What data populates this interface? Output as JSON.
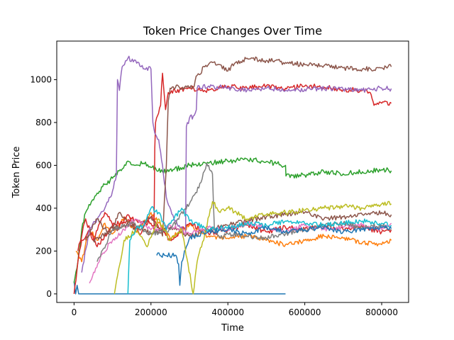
{
  "chart_data": {
    "type": "line",
    "title": "Token Price Changes Over Time",
    "xlabel": "Time",
    "ylabel": "Token Price",
    "xlim": [
      -45000,
      870000
    ],
    "ylim": [
      -40,
      1180
    ],
    "xticks": [
      0,
      200000,
      400000,
      600000,
      800000
    ],
    "xtick_labels": [
      "0",
      "200000",
      "400000",
      "600000",
      "800000"
    ],
    "yticks": [
      0,
      200,
      400,
      600,
      800,
      1000
    ],
    "ytick_labels": [
      "0",
      "200",
      "400",
      "600",
      "800",
      "1000"
    ],
    "grid": false,
    "legend": "none",
    "series": [
      {
        "color": "#1f77b4",
        "x": [
          0,
          4000,
          8000,
          12000,
          550000
        ],
        "y": [
          60,
          0,
          40,
          0,
          0
        ]
      },
      {
        "color": "#1f77b4",
        "x": [
          215000,
          255000,
          265000,
          272000,
          275000,
          280000,
          287000,
          295000,
          300000
        ],
        "y": [
          180,
          180,
          180,
          140,
          40,
          150,
          200,
          230,
          260
        ]
      },
      {
        "color": "#ff7f0e",
        "x": [
          5000,
          20000,
          40000,
          60000,
          80000,
          100000,
          130000,
          160000,
          200000,
          250000,
          300000,
          350000,
          400000,
          450000,
          500000,
          550000,
          600000,
          650000,
          700000,
          750000,
          800000,
          825000
        ],
        "y": [
          200,
          150,
          300,
          250,
          330,
          280,
          360,
          290,
          380,
          260,
          320,
          270,
          260,
          270,
          250,
          230,
          250,
          270,
          260,
          240,
          230,
          250
        ]
      },
      {
        "color": "#2ca02c",
        "x": [
          0,
          10000,
          20000,
          30000,
          45000,
          60000,
          80000,
          100000,
          120000,
          140000,
          160000,
          180000,
          200000,
          230000,
          260000,
          300000,
          350000,
          400000,
          450000,
          490000,
          520000,
          550000,
          551000,
          600000,
          650000,
          700000,
          750000,
          800000,
          825000
        ],
        "y": [
          50,
          150,
          300,
          380,
          430,
          470,
          510,
          540,
          580,
          620,
          600,
          610,
          590,
          570,
          580,
          600,
          610,
          620,
          630,
          620,
          610,
          600,
          550,
          555,
          570,
          560,
          570,
          580,
          575
        ]
      },
      {
        "color": "#d62728",
        "x": [
          0,
          10000,
          20000,
          40000,
          60000,
          100000,
          150000,
          200000,
          208000,
          210000,
          212000,
          225000,
          230000,
          238000,
          245000,
          300000,
          350000,
          400000,
          450000,
          500000,
          550000,
          600000,
          650000,
          700000,
          750000,
          770000,
          780000,
          800000,
          825000
        ],
        "y": [
          0,
          150,
          250,
          300,
          220,
          320,
          350,
          330,
          300,
          680,
          800,
          880,
          1030,
          860,
          940,
          960,
          950,
          970,
          960,
          970,
          960,
          970,
          965,
          955,
          950,
          940,
          880,
          890,
          890
        ]
      },
      {
        "color": "#d62728",
        "x": [
          10000,
          30000,
          50000,
          80000,
          110000,
          140000,
          170000,
          200000,
          250000,
          300000,
          350000,
          400000,
          450000,
          500000,
          550000,
          600000,
          650000,
          700000,
          750000,
          800000,
          825000
        ],
        "y": [
          200,
          350,
          250,
          380,
          300,
          370,
          280,
          360,
          250,
          330,
          280,
          300,
          320,
          290,
          310,
          300,
          320,
          300,
          310,
          290,
          300
        ]
      },
      {
        "color": "#9467bd",
        "x": [
          20000,
          40000,
          60000,
          80000,
          100000,
          110000,
          113000,
          118000,
          125000,
          140000,
          160000,
          180000,
          200000,
          205000,
          210000,
          220000,
          230000,
          240000,
          260000,
          290000,
          292000,
          300000,
          310000,
          318000,
          320000,
          350000,
          400000,
          450000,
          500000,
          550000,
          600000,
          650000,
          700000,
          750000,
          800000,
          825000
        ],
        "y": [
          100,
          300,
          350,
          400,
          480,
          550,
          1000,
          950,
          1060,
          1100,
          1090,
          1050,
          1050,
          800,
          750,
          720,
          600,
          450,
          350,
          280,
          780,
          820,
          830,
          860,
          960,
          970,
          960,
          950,
          960,
          950,
          955,
          960,
          955,
          950,
          960,
          958
        ]
      },
      {
        "color": "#8c564b",
        "x": [
          30000,
          60000,
          90000,
          120000,
          160000,
          200000,
          230000,
          240000,
          245000,
          250000,
          255000,
          310000,
          320000,
          340000,
          360000,
          380000,
          400000,
          420000,
          450000,
          500000,
          550000,
          600000,
          650000,
          700000,
          750000,
          800000,
          825000
        ],
        "y": [
          250,
          350,
          280,
          380,
          300,
          360,
          270,
          600,
          900,
          960,
          965,
          965,
          1020,
          1060,
          1080,
          1070,
          1040,
          1080,
          1100,
          1090,
          1080,
          1070,
          1065,
          1055,
          1050,
          1055,
          1060
        ]
      },
      {
        "color": "#8c564b",
        "x": [
          50000,
          100000,
          150000,
          200000,
          250000,
          300000,
          350000,
          400000,
          450000,
          500000,
          550000,
          600000,
          650000,
          700000,
          750000,
          800000,
          825000
        ],
        "y": [
          250,
          300,
          330,
          280,
          310,
          270,
          300,
          320,
          340,
          360,
          370,
          380,
          350,
          360,
          370,
          380,
          370
        ]
      },
      {
        "color": "#e377c2",
        "x": [
          40000,
          70000,
          100000,
          130000,
          160000,
          200000,
          250000,
          300000,
          350000,
          400000,
          450000,
          500000,
          550000,
          600000,
          650000,
          700000,
          750000,
          800000,
          825000
        ],
        "y": [
          50,
          180,
          250,
          300,
          350,
          300,
          320,
          280,
          310,
          300,
          330,
          310,
          290,
          320,
          300,
          310,
          320,
          300,
          330
        ]
      },
      {
        "color": "#7f7f7f",
        "x": [
          60000,
          100000,
          150000,
          200000,
          250000,
          300000,
          330000,
          345000,
          350000,
          360000,
          365000,
          380000,
          400000,
          450000,
          500000,
          550000,
          600000,
          650000,
          700000,
          750000,
          800000,
          825000
        ],
        "y": [
          150,
          300,
          330,
          280,
          300,
          420,
          520,
          610,
          600,
          560,
          300,
          260,
          280,
          270,
          260,
          280,
          300,
          320,
          330,
          310,
          320,
          300
        ]
      },
      {
        "color": "#bcbd22",
        "x": [
          105000,
          130000,
          160000,
          190000,
          220000,
          250000,
          280000,
          310000,
          320000,
          340000,
          360000,
          380000,
          400000,
          450000,
          500000,
          550000,
          600000,
          650000,
          700000,
          750000,
          800000,
          825000
        ],
        "y": [
          0,
          250,
          300,
          220,
          350,
          250,
          300,
          0,
          150,
          280,
          430,
          380,
          400,
          350,
          370,
          380,
          390,
          400,
          410,
          400,
          420,
          420
        ]
      },
      {
        "color": "#17becf",
        "x": [
          140000,
          145000,
          160000,
          180000,
          200000,
          220000,
          240000,
          260000,
          280000,
          300000,
          350000,
          400000,
          450000,
          500000,
          550000,
          600000,
          650000,
          700000,
          750000,
          800000,
          825000
        ],
        "y": [
          0,
          250,
          300,
          320,
          400,
          380,
          300,
          350,
          400,
          340,
          300,
          310,
          330,
          320,
          340,
          330,
          320,
          330,
          340,
          330,
          320
        ]
      },
      {
        "color": "#1f77b4",
        "x": [
          300000,
          350000,
          400000,
          450000,
          500000,
          550000,
          600000,
          650000,
          700000,
          750000,
          800000,
          825000
        ],
        "y": [
          260,
          290,
          300,
          280,
          310,
          290,
          300,
          310,
          290,
          300,
          310,
          305
        ]
      }
    ]
  }
}
